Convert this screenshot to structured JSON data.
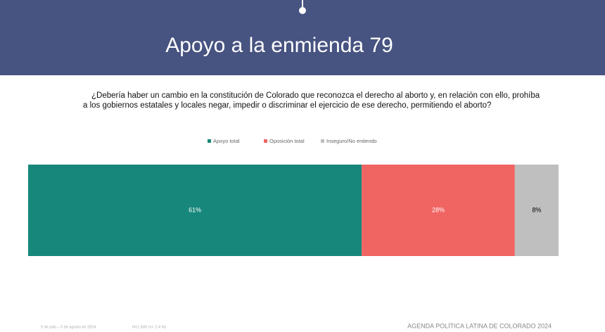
{
  "chart_data": {
    "type": "stacked-bar",
    "title": "Apoyo a la enmienda 79",
    "question_lines": [
      "¿Debería haber un cambio en la constitución de Colorado que reconozca el derecho al aborto y, en relación con ello, prohíba",
      "a los gobiernos estatales y locales negar, impedir o discriminar el ejercicio de ese derecho, permitiendo el aborto?"
    ],
    "series": [
      {
        "name": "Apoyo total",
        "color": "#17877b",
        "label_color": "#ffffff",
        "values": [
          61
        ],
        "value_labels": [
          "61%"
        ]
      },
      {
        "name": "Oposición total",
        "color": "#f06462",
        "label_color": "#ffffff",
        "values": [
          28
        ],
        "value_labels": [
          "28%"
        ]
      },
      {
        "name": "Inseguro/No entiendo",
        "color": "#bfbfbf",
        "label_color": "#000000",
        "values": [
          8
        ],
        "value_labels": [
          "8%"
        ]
      }
    ],
    "footer_dates": "5 de julio – 5 de agosto de 2024",
    "footer_sample": "N=1.600 (+/- 2.4 %)",
    "footer_source": "AGENDA POLÍTICA LATINA DE COLORADO 2024"
  }
}
